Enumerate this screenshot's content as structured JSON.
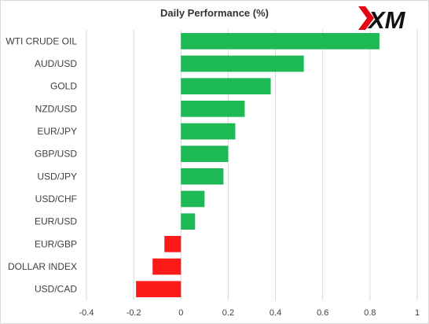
{
  "brand": {
    "logo_text": "XM",
    "accent_color": "#e30613"
  },
  "chart_data": {
    "type": "bar",
    "orientation": "horizontal",
    "title": "Daily Performance  (%)",
    "categories": [
      "WTI CRUDE OIL",
      "AUD/USD",
      "GOLD",
      "NZD/USD",
      "EUR/JPY",
      "GBP/USD",
      "USD/JPY",
      "USD/CHF",
      "EUR/USD",
      "EUR/GBP",
      "DOLLAR INDEX",
      "USD/CAD"
    ],
    "values": [
      0.84,
      0.52,
      0.38,
      0.27,
      0.23,
      0.2,
      0.18,
      0.1,
      0.06,
      -0.07,
      -0.12,
      -0.19
    ],
    "xlim": [
      -0.4,
      1.0
    ],
    "xticks": [
      -0.4,
      -0.2,
      0,
      0.2,
      0.4,
      0.6,
      0.8,
      1
    ],
    "xtick_labels": [
      "-0.4",
      "-0.2",
      "0",
      "0.2",
      "0.4",
      "0.6",
      "0.8",
      "1"
    ],
    "grid": "vertical",
    "colors": {
      "positive": "#1db954",
      "negative": "#ff1a1a"
    }
  }
}
